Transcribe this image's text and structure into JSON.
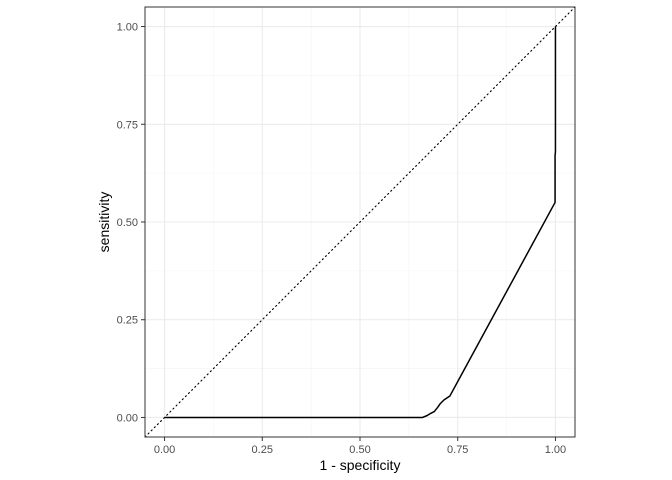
{
  "chart_data": {
    "type": "line",
    "title": "",
    "xlabel": "1 - specificity",
    "ylabel": "sensitivity",
    "xlim": [
      -0.05,
      1.05
    ],
    "ylim": [
      -0.05,
      1.05
    ],
    "x_ticks": [
      0.0,
      0.25,
      0.5,
      0.75,
      1.0
    ],
    "x_tick_labels": [
      "0.00",
      "0.25",
      "0.50",
      "0.75",
      "1.00"
    ],
    "y_ticks": [
      0.0,
      0.25,
      0.5,
      0.75,
      1.0
    ],
    "y_tick_labels": [
      "0.00",
      "0.25",
      "0.50",
      "0.75",
      "1.00"
    ],
    "grid": true,
    "aspect": "equal",
    "reference_line": {
      "style": "dotted",
      "x": [
        -0.05,
        1.05
      ],
      "y": [
        -0.05,
        1.05
      ]
    },
    "series": [
      {
        "color": "#000000",
        "x": [
          0.0,
          0.52,
          0.66,
          0.672,
          0.68,
          0.69,
          0.698,
          0.705,
          0.715,
          0.73,
          0.999,
          0.999,
          1.0,
          1.0,
          1.0
        ],
        "y": [
          0.0,
          0.0,
          0.0,
          0.005,
          0.01,
          0.015,
          0.025,
          0.035,
          0.045,
          0.055,
          0.55,
          0.67,
          0.68,
          0.9,
          1.0
        ]
      }
    ]
  },
  "colors": {
    "panel_border": "#333333",
    "grid_major": "#ebebeb",
    "grid_minor": "#f5f5f5",
    "curve": "#000000",
    "reference": "#000000"
  }
}
